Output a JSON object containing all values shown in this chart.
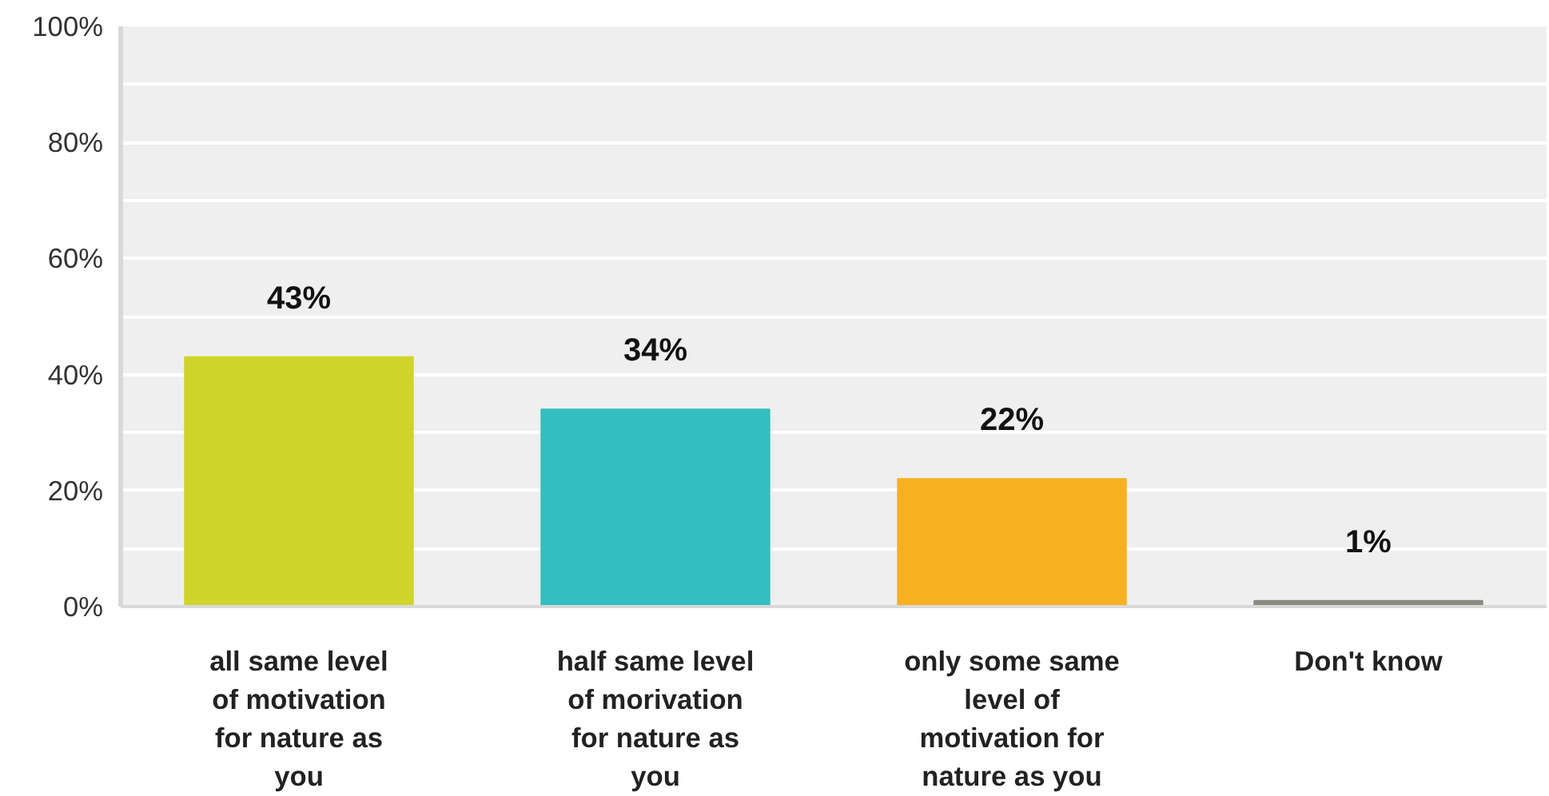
{
  "chart_data": {
    "type": "bar",
    "categories": [
      "all same level of motivation for nature as you",
      "half same level of morivation for nature as you",
      "only some same level of motivation for nature as you",
      "Don't know"
    ],
    "values": [
      43,
      34,
      22,
      1
    ],
    "colors": [
      "#cfd42a",
      "#33bec0",
      "#f7b020",
      "#8a8a80"
    ],
    "value_labels": [
      "43%",
      "34%",
      "22%",
      "1%"
    ],
    "ylim": [
      0,
      100
    ],
    "yticks": [
      {
        "value": 0,
        "label": "0%"
      },
      {
        "value": 10,
        "label": null
      },
      {
        "value": 20,
        "label": "20%"
      },
      {
        "value": 30,
        "label": null
      },
      {
        "value": 40,
        "label": "40%"
      },
      {
        "value": 50,
        "label": null
      },
      {
        "value": 60,
        "label": "60%"
      },
      {
        "value": 70,
        "label": null
      },
      {
        "value": 80,
        "label": "80%"
      },
      {
        "value": 90,
        "label": null
      },
      {
        "value": 100,
        "label": "100%"
      }
    ],
    "grid": "y"
  }
}
